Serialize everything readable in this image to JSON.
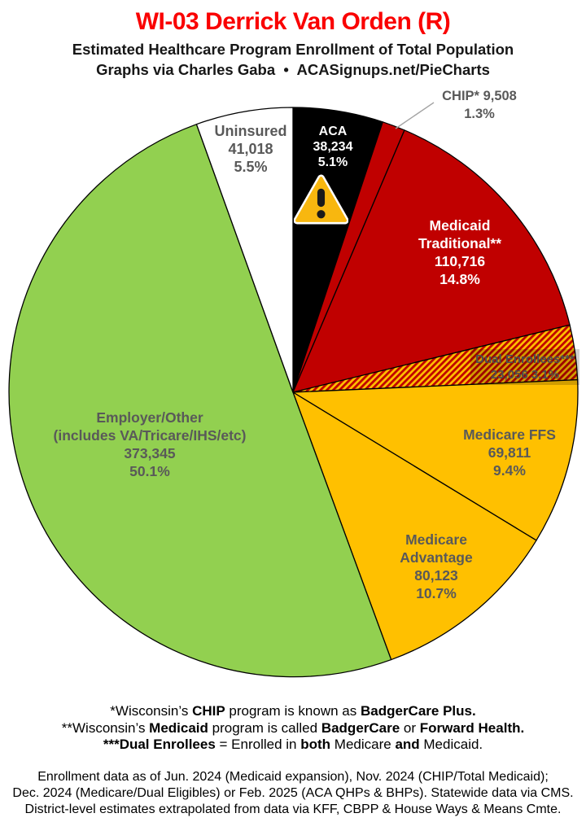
{
  "header": {
    "title": "WI-03 Derrick Van Orden (R)",
    "subtitle": "Estimated Healthcare Program Enrollment of Total Population",
    "byline": "Graphs via Charles Gaba  •  ACASignups.net/PieCharts"
  },
  "colors": {
    "title_red": "#FA0000",
    "label_gray": "#595959",
    "slice_border": "#000000",
    "leader_line": "#A3A3A3",
    "warning_triangle_fill": "#F8B70F",
    "warning_glyph": "#1A1A1A"
  },
  "chart_data": {
    "type": "pie",
    "title": "Estimated Healthcare Program Enrollment of Total Population",
    "start_angle_deg": -90,
    "direction": "clockwise",
    "legend_position": "labels-on-slices",
    "hatch_colors": [
      "#FFC000",
      "#C00000"
    ],
    "slices": [
      {
        "id": "aca",
        "name": "ACA",
        "value": "38,234",
        "value_num": 38234,
        "pct": "5.1%",
        "pct_num": 5.1,
        "color": "#000000",
        "text_color": "#FFFFFF",
        "icon": "warning-triangle-icon"
      },
      {
        "id": "chip",
        "name": "CHIP*",
        "value": "9,508",
        "value_num": 9508,
        "pct": "1.3%",
        "pct_num": 1.3,
        "color": "#C00000",
        "text_color": "#595959",
        "label_outside": true
      },
      {
        "id": "medicaid-traditional",
        "name": "Medicaid",
        "name2": "Traditional**",
        "value": "110,716",
        "value_num": 110716,
        "pct": "14.8%",
        "pct_num": 14.8,
        "color": "#C00000",
        "text_color": "#FFFFFF"
      },
      {
        "id": "dual-enrollees",
        "name": "Dual Enrollees***",
        "value": "23,056",
        "value_num": 23056,
        "pct": "3.1%",
        "pct_num": 3.1,
        "color": "hatch",
        "text_color": "#4D4D4D",
        "label_backdrop": "rgba(0,0,0,0.18)"
      },
      {
        "id": "medicare-ffs",
        "name": "Medicare FFS",
        "value": "69,811",
        "value_num": 69811,
        "pct": "9.4%",
        "pct_num": 9.4,
        "color": "#FFC000",
        "text_color": "#595959"
      },
      {
        "id": "medicare-advantage",
        "name": "Medicare",
        "name2": "Advantage",
        "value": "80,123",
        "value_num": 80123,
        "pct": "10.7%",
        "pct_num": 10.7,
        "color": "#FFC000",
        "text_color": "#595959"
      },
      {
        "id": "employer-other",
        "name": "Employer/Other",
        "name2": "(includes VA/Tricare/IHS/etc)",
        "value": "373,345",
        "value_num": 373345,
        "pct": "50.1%",
        "pct_num": 50.1,
        "color": "#92D050",
        "text_color": "#595959"
      },
      {
        "id": "uninsured",
        "name": "Uninsured",
        "value": "41,018",
        "value_num": 41018,
        "pct": "5.5%",
        "pct_num": 5.5,
        "color": "#FFFFFF",
        "text_color": "#595959"
      }
    ]
  },
  "footnotes": {
    "lines": [
      [
        {
          "t": "*Wisconsin’s ",
          "b": false
        },
        {
          "t": "CHIP",
          "b": true
        },
        {
          "t": " program is known as ",
          "b": false
        },
        {
          "t": "BadgerCare Plus.",
          "b": true
        }
      ],
      [
        {
          "t": "**Wisconsin’s ",
          "b": false
        },
        {
          "t": "Medicaid",
          "b": true
        },
        {
          "t": " program is called ",
          "b": false
        },
        {
          "t": "BadgerCare",
          "b": true
        },
        {
          "t": " or ",
          "b": false
        },
        {
          "t": "Forward Health.",
          "b": true
        }
      ],
      [
        {
          "t": "***Dual Enrollees",
          "b": true
        },
        {
          "t": " = Enrolled in ",
          "b": false
        },
        {
          "t": "both",
          "b": true
        },
        {
          "t": " Medicare ",
          "b": false
        },
        {
          "t": "and",
          "b": true
        },
        {
          "t": " Medicaid.",
          "b": false
        }
      ]
    ]
  },
  "source": {
    "lines": [
      "Enrollment data as of Jun. 2024 (Medicaid expansion), Nov. 2024 (CHIP/Total Medicaid);",
      "Dec. 2024 (Medicare/Dual Eligibles) or Feb. 2025 (ACA QHPs & BHPs). Statewide data via CMS.",
      "District-level estimates extrapolated from data via KFF, CBPP & House Ways & Means Cmte."
    ]
  }
}
